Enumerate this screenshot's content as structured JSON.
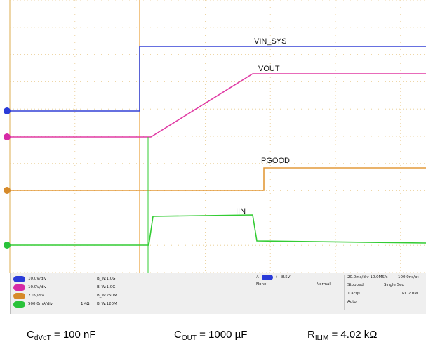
{
  "waveform_labels": {
    "vin_sys": "VIN_SYS",
    "vout": "VOUT",
    "pgood": "PGOOD",
    "iin": "IIN"
  },
  "channel_settings": [
    {
      "badge": "1",
      "color": "#2a3bd8",
      "scale": "10.0V/div",
      "bandwidth": "B_W:1.0G"
    },
    {
      "badge": "2",
      "color": "#d62aa6",
      "scale": "10.0V/div",
      "bandwidth": "B_W:1.0G"
    },
    {
      "badge": "3",
      "color": "#d68a2a",
      "scale": "2.0V/div",
      "bandwidth": "B_W:250M"
    },
    {
      "badge": "4",
      "color": "#29c23a",
      "scale": "500.0mA/div",
      "impedance": "1MΩ",
      "bandwidth": "B_W:120M"
    }
  ],
  "trigger": {
    "source": "1",
    "level": "8.5V",
    "slope": "/",
    "coupling": "None",
    "mode": "Normal"
  },
  "acquisition": {
    "timebase": "20.0ms/div 10.0MS/s",
    "resolution": "100.0ns/pt",
    "status": "Stopped",
    "sequence": "Single Seq",
    "acqs": "1 acqs",
    "record_length": "RL 2.0M",
    "auto": "Auto"
  },
  "caption": {
    "cdvdt_sym": "C",
    "cdvdt_sub": "dVdT",
    "cdvdt_val": " = 100 nF",
    "cout_sym": "C",
    "cout_sub": "OUT",
    "cout_val": " = 1000 µF",
    "rilim_sym": "R",
    "rilim_sub": "ILIM",
    "rilim_val": " = 4.02 kΩ"
  },
  "colors": {
    "grid": "#e8c98a",
    "ch1": "#3341d6",
    "ch2": "#e03aa4",
    "ch3": "#e39a3a",
    "ch4": "#33cc33",
    "trigger_line": "#e8a13a"
  }
}
